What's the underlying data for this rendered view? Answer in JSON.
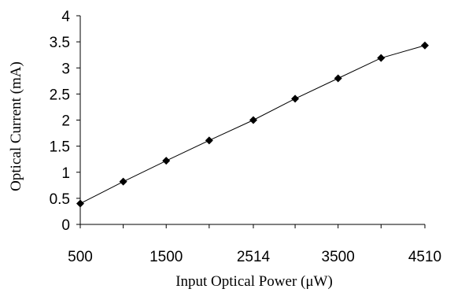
{
  "chart_data": {
    "type": "line",
    "title": "",
    "xlabel": "Input Optical Power (μW)",
    "ylabel": "Optical Current (mA)",
    "x": [
      500,
      1000,
      1500,
      2000,
      2514,
      3000,
      3500,
      4000,
      4510
    ],
    "series": [
      {
        "values": [
          0.4,
          0.82,
          1.22,
          1.61,
          2.0,
          2.41,
          2.8,
          3.19,
          3.43
        ]
      }
    ],
    "xlim": [
      500,
      4510
    ],
    "ylim": [
      0,
      4
    ],
    "x_tick_labels": [
      "500",
      "1500",
      "2514",
      "3500",
      "4510"
    ],
    "y_tick_labels": [
      "0",
      "0.5",
      "1",
      "1.5",
      "2",
      "2.5",
      "3",
      "3.5",
      "4"
    ],
    "grid": false,
    "legend": "none",
    "colors": {
      "line": "#000000",
      "marker": "#000000"
    }
  }
}
